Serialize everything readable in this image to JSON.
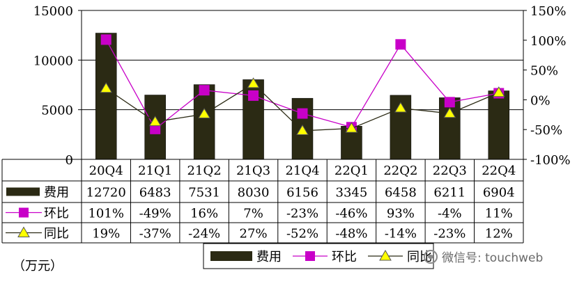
{
  "chart_data": {
    "type": "bar",
    "categories": [
      "20Q4",
      "21Q1",
      "21Q2",
      "21Q3",
      "21Q4",
      "22Q1",
      "22Q2",
      "22Q3",
      "22Q4"
    ],
    "series": [
      {
        "name": "费用",
        "kind": "bar",
        "axis": "left",
        "color": "#2b2a14",
        "values": [
          12720,
          6483,
          7531,
          8030,
          6156,
          3345,
          6458,
          6211,
          6904
        ]
      },
      {
        "name": "环比",
        "kind": "line",
        "axis": "right",
        "color": "#c800c8",
        "marker": "square",
        "values": [
          101,
          -49,
          16,
          7,
          -23,
          -46,
          93,
          -4,
          11
        ]
      },
      {
        "name": "同比",
        "kind": "line",
        "axis": "right",
        "color": "#2b2a14",
        "marker": "triangle",
        "marker_color": "#ffff00",
        "values": [
          19,
          -37,
          -24,
          27,
          -52,
          -48,
          -14,
          -23,
          12
        ]
      }
    ],
    "table_rows": [
      {
        "label": "费用",
        "cells": [
          "12720",
          "6483",
          "7531",
          "8030",
          "6156",
          "3345",
          "6458",
          "6211",
          "6904"
        ]
      },
      {
        "label": "环比",
        "cells": [
          "101%",
          "-49%",
          "16%",
          "7%",
          "-23%",
          "-46%",
          "93%",
          "-4%",
          "11%"
        ]
      },
      {
        "label": "同比",
        "cells": [
          "19%",
          "-37%",
          "-24%",
          "27%",
          "-52%",
          "-48%",
          "-14%",
          "-23%",
          "12%"
        ]
      }
    ],
    "y_left": {
      "lim": [
        0,
        15000
      ],
      "ticks": [
        "0",
        "5000",
        "10000",
        "15000"
      ]
    },
    "y_right": {
      "lim": [
        -100,
        150
      ],
      "ticks": [
        "150%",
        "100%",
        "50%",
        "0%",
        "-50%",
        "-100%"
      ]
    },
    "gridlines": [
      5000,
      10000
    ],
    "legend": {
      "placement": "bottom",
      "items": [
        "费用",
        "环比",
        "同比"
      ]
    }
  },
  "unit_label": "（万元）",
  "watermark": "微信号: touchweb"
}
